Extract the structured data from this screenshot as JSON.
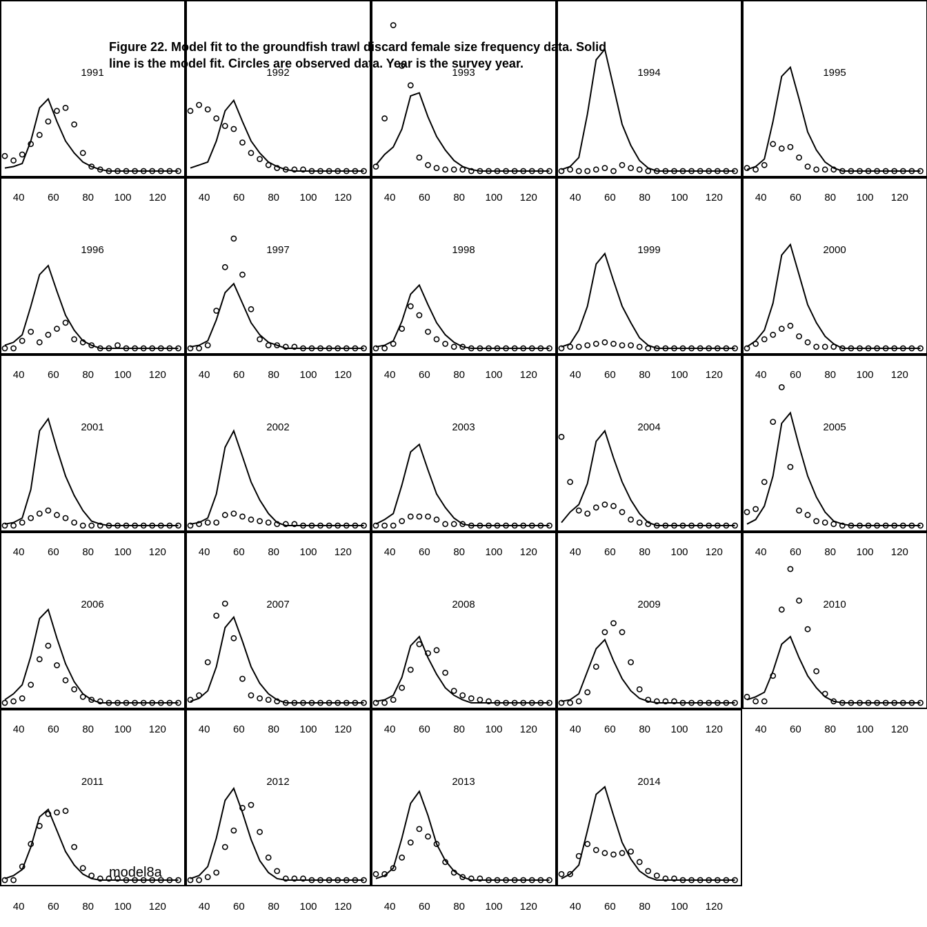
{
  "caption": {
    "line1": "Figure 22.  Model fit to the groundfish trawl discard female size frequency data.  Solid",
    "line2": "line is the model fit. Circles are observed data.  Year is the survey year."
  },
  "model_label": "model8a",
  "chart_data": {
    "type": "scatter",
    "layout": "5x5 panel grid",
    "x_ticks": [
      40,
      60,
      80,
      100,
      120
    ],
    "x_range": [
      30,
      135
    ],
    "x_bins": [
      32,
      37,
      42,
      47,
      52,
      57,
      62,
      67,
      72,
      77,
      82,
      87,
      92,
      97,
      102,
      107,
      112,
      117,
      122,
      127,
      132
    ],
    "y_range": [
      0,
      1
    ],
    "panels": [
      {
        "year": "1991",
        "fit": [
          0.02,
          0.03,
          0.05,
          0.2,
          0.42,
          0.48,
          0.33,
          0.2,
          0.12,
          0.06,
          0.03,
          0.01,
          0,
          0,
          0,
          0,
          0,
          0,
          0,
          0,
          0
        ],
        "obs": [
          0.1,
          0.07,
          0.11,
          0.18,
          0.24,
          0.33,
          0.4,
          0.42,
          0.31,
          0.12,
          0.03,
          0.01,
          0,
          0,
          0,
          0,
          0,
          0,
          0,
          0,
          0
        ]
      },
      {
        "year": "1992",
        "fit": [
          0.02,
          0.04,
          0.06,
          0.2,
          0.4,
          0.47,
          0.33,
          0.2,
          0.12,
          0.06,
          0.03,
          0.01,
          0,
          0,
          0,
          0,
          0,
          0,
          0,
          0,
          0
        ],
        "obs": [
          0.4,
          0.44,
          0.41,
          0.35,
          0.3,
          0.28,
          0.19,
          0.12,
          0.08,
          0.04,
          0.02,
          0.01,
          0.01,
          0.01,
          0,
          0,
          0,
          0,
          0,
          0,
          0
        ]
      },
      {
        "year": "1993",
        "fit": [
          0.04,
          0.11,
          0.16,
          0.28,
          0.5,
          0.52,
          0.36,
          0.23,
          0.14,
          0.07,
          0.03,
          0.01,
          0,
          0,
          0,
          0,
          0,
          0,
          0,
          0,
          0
        ],
        "obs": [
          0.03,
          0.35,
          0.97,
          0.7,
          0.57,
          0.09,
          0.04,
          0.02,
          0.01,
          0.01,
          0.01,
          0,
          0,
          0,
          0,
          0,
          0,
          0,
          0,
          0,
          0
        ]
      },
      {
        "year": "1994",
        "fit": [
          0.01,
          0.03,
          0.09,
          0.38,
          0.74,
          0.81,
          0.56,
          0.31,
          0.17,
          0.07,
          0.02,
          0,
          0,
          0,
          0,
          0,
          0,
          0,
          0,
          0,
          0
        ],
        "obs": [
          0,
          0.01,
          0,
          0,
          0.01,
          0.02,
          0,
          0.04,
          0.02,
          0.01,
          0,
          0,
          0,
          0,
          0,
          0,
          0,
          0,
          0,
          0,
          0
        ]
      },
      {
        "year": "1995",
        "fit": [
          0.01,
          0.03,
          0.08,
          0.33,
          0.63,
          0.69,
          0.48,
          0.26,
          0.14,
          0.06,
          0.02,
          0,
          0,
          0,
          0,
          0,
          0,
          0,
          0,
          0,
          0
        ],
        "obs": [
          0.02,
          0.01,
          0.04,
          0.18,
          0.15,
          0.16,
          0.09,
          0.03,
          0.01,
          0.01,
          0.01,
          0,
          0,
          0,
          0,
          0,
          0,
          0,
          0,
          0,
          0
        ]
      },
      {
        "year": "1996",
        "fit": [
          0.02,
          0.04,
          0.09,
          0.28,
          0.49,
          0.55,
          0.38,
          0.22,
          0.12,
          0.05,
          0.02,
          0,
          0,
          0,
          0,
          0,
          0,
          0,
          0,
          0,
          0
        ],
        "obs": [
          0,
          0,
          0.05,
          0.11,
          0.04,
          0.09,
          0.13,
          0.17,
          0.06,
          0.04,
          0.02,
          0,
          0,
          0.02,
          0,
          0,
          0,
          0,
          0,
          0,
          0
        ]
      },
      {
        "year": "1997",
        "fit": [
          0.01,
          0.02,
          0.05,
          0.19,
          0.37,
          0.43,
          0.3,
          0.17,
          0.09,
          0.04,
          0.02,
          0,
          0,
          0,
          0,
          0,
          0,
          0,
          0,
          0,
          0
        ],
        "obs": [
          0,
          0,
          0.02,
          0.25,
          0.54,
          0.73,
          0.49,
          0.26,
          0.06,
          0.02,
          0.02,
          0.01,
          0.01,
          0,
          0,
          0,
          0,
          0,
          0,
          0,
          0
        ]
      },
      {
        "year": "1998",
        "fit": [
          0.01,
          0.02,
          0.05,
          0.18,
          0.36,
          0.42,
          0.29,
          0.17,
          0.09,
          0.04,
          0.01,
          0,
          0,
          0,
          0,
          0,
          0,
          0,
          0,
          0,
          0
        ],
        "obs": [
          0,
          0,
          0.03,
          0.13,
          0.28,
          0.22,
          0.11,
          0.06,
          0.03,
          0.01,
          0.01,
          0,
          0,
          0,
          0,
          0,
          0,
          0,
          0,
          0,
          0
        ]
      },
      {
        "year": "1999",
        "fit": [
          0.01,
          0.03,
          0.12,
          0.28,
          0.56,
          0.63,
          0.45,
          0.28,
          0.17,
          0.07,
          0.02,
          0,
          0,
          0,
          0,
          0,
          0,
          0,
          0,
          0,
          0
        ],
        "obs": [
          0,
          0.01,
          0.01,
          0.02,
          0.03,
          0.04,
          0.03,
          0.02,
          0.02,
          0.01,
          0,
          0,
          0,
          0,
          0,
          0,
          0,
          0,
          0,
          0,
          0
        ]
      },
      {
        "year": "2000",
        "fit": [
          0.01,
          0.05,
          0.12,
          0.3,
          0.62,
          0.69,
          0.49,
          0.29,
          0.17,
          0.08,
          0.03,
          0,
          0,
          0,
          0,
          0,
          0,
          0,
          0,
          0,
          0
        ],
        "obs": [
          0,
          0.03,
          0.06,
          0.09,
          0.13,
          0.15,
          0.08,
          0.04,
          0.01,
          0.01,
          0.01,
          0,
          0,
          0,
          0,
          0,
          0,
          0,
          0,
          0,
          0
        ]
      },
      {
        "year": "2001",
        "fit": [
          0.01,
          0.02,
          0.05,
          0.24,
          0.63,
          0.71,
          0.51,
          0.33,
          0.2,
          0.1,
          0.03,
          0.01,
          0,
          0,
          0,
          0,
          0,
          0,
          0,
          0,
          0
        ],
        "obs": [
          0,
          0,
          0.02,
          0.05,
          0.08,
          0.1,
          0.07,
          0.05,
          0.02,
          0,
          0,
          0,
          0,
          0,
          0,
          0,
          0,
          0,
          0,
          0,
          0
        ]
      },
      {
        "year": "2002",
        "fit": [
          0.01,
          0.02,
          0.05,
          0.21,
          0.52,
          0.63,
          0.46,
          0.29,
          0.17,
          0.08,
          0.02,
          0,
          0,
          0,
          0,
          0,
          0,
          0,
          0,
          0,
          0
        ],
        "obs": [
          0,
          0.01,
          0.02,
          0.02,
          0.07,
          0.08,
          0.06,
          0.04,
          0.03,
          0.02,
          0.01,
          0.01,
          0.01,
          0,
          0,
          0,
          0,
          0,
          0,
          0,
          0
        ]
      },
      {
        "year": "2003",
        "fit": [
          0.01,
          0.04,
          0.08,
          0.27,
          0.49,
          0.54,
          0.37,
          0.21,
          0.12,
          0.05,
          0.01,
          0,
          0,
          0,
          0,
          0,
          0,
          0,
          0,
          0,
          0
        ],
        "obs": [
          0,
          0,
          0,
          0.03,
          0.06,
          0.06,
          0.06,
          0.04,
          0.01,
          0.01,
          0.01,
          0,
          0,
          0,
          0,
          0,
          0,
          0,
          0,
          0,
          0
        ]
      },
      {
        "year": "2004",
        "fit": [
          0.02,
          0.09,
          0.14,
          0.28,
          0.56,
          0.63,
          0.45,
          0.29,
          0.17,
          0.08,
          0.02,
          0,
          0,
          0,
          0,
          0,
          0,
          0,
          0,
          0,
          0
        ],
        "obs": [
          0.59,
          0.29,
          0.1,
          0.08,
          0.12,
          0.14,
          0.13,
          0.09,
          0.04,
          0.02,
          0.01,
          0,
          0,
          0,
          0,
          0,
          0,
          0,
          0,
          0,
          0
        ]
      },
      {
        "year": "2005",
        "fit": [
          0.01,
          0.04,
          0.13,
          0.33,
          0.68,
          0.75,
          0.53,
          0.33,
          0.19,
          0.09,
          0.03,
          0.01,
          0,
          0,
          0,
          0,
          0,
          0,
          0,
          0,
          0
        ],
        "obs": [
          0.09,
          0.11,
          0.29,
          0.69,
          0.92,
          0.39,
          0.1,
          0.07,
          0.03,
          0.02,
          0.01,
          0,
          0,
          0,
          0,
          0,
          0,
          0,
          0,
          0,
          0
        ]
      },
      {
        "year": "2006",
        "fit": [
          0.02,
          0.06,
          0.12,
          0.31,
          0.56,
          0.62,
          0.43,
          0.26,
          0.14,
          0.06,
          0.02,
          0,
          0,
          0,
          0,
          0,
          0,
          0,
          0,
          0,
          0
        ],
        "obs": [
          0,
          0.01,
          0.03,
          0.12,
          0.29,
          0.38,
          0.25,
          0.15,
          0.09,
          0.04,
          0.02,
          0.01,
          0,
          0,
          0,
          0,
          0,
          0,
          0,
          0,
          0
        ]
      },
      {
        "year": "2007",
        "fit": [
          0.01,
          0.03,
          0.08,
          0.24,
          0.5,
          0.57,
          0.41,
          0.24,
          0.13,
          0.06,
          0.02,
          0,
          0,
          0,
          0,
          0,
          0,
          0,
          0,
          0,
          0
        ],
        "obs": [
          0.02,
          0.05,
          0.27,
          0.58,
          0.66,
          0.43,
          0.16,
          0.05,
          0.03,
          0.02,
          0.01,
          0,
          0,
          0,
          0,
          0,
          0,
          0,
          0,
          0,
          0
        ]
      },
      {
        "year": "2008",
        "fit": [
          0.01,
          0.02,
          0.05,
          0.17,
          0.38,
          0.44,
          0.3,
          0.19,
          0.1,
          0.05,
          0.02,
          0,
          0,
          0,
          0,
          0,
          0,
          0,
          0,
          0,
          0
        ],
        "obs": [
          0,
          0,
          0.02,
          0.1,
          0.22,
          0.39,
          0.33,
          0.35,
          0.2,
          0.08,
          0.05,
          0.03,
          0.02,
          0.01,
          0,
          0,
          0,
          0,
          0,
          0,
          0
        ]
      },
      {
        "year": "2009",
        "fit": [
          0.01,
          0.02,
          0.06,
          0.21,
          0.36,
          0.42,
          0.28,
          0.16,
          0.08,
          0.03,
          0.01,
          0,
          0,
          0,
          0,
          0,
          0,
          0,
          0,
          0,
          0
        ],
        "obs": [
          0,
          0,
          0.01,
          0.07,
          0.24,
          0.47,
          0.53,
          0.47,
          0.27,
          0.09,
          0.02,
          0.01,
          0.01,
          0.01,
          0,
          0,
          0,
          0,
          0,
          0,
          0
        ]
      },
      {
        "year": "2010",
        "fit": [
          0.02,
          0.04,
          0.07,
          0.21,
          0.39,
          0.44,
          0.3,
          0.18,
          0.1,
          0.04,
          0.01,
          0,
          0,
          0,
          0,
          0,
          0,
          0,
          0,
          0,
          0
        ],
        "obs": [
          0.04,
          0.01,
          0.01,
          0.18,
          0.62,
          0.89,
          0.68,
          0.49,
          0.21,
          0.06,
          0.01,
          0,
          0,
          0,
          0,
          0,
          0,
          0,
          0,
          0,
          0
        ]
      },
      {
        "year": "2011",
        "fit": [
          0.01,
          0.03,
          0.07,
          0.22,
          0.42,
          0.47,
          0.33,
          0.19,
          0.1,
          0.04,
          0.01,
          0,
          0,
          0,
          0,
          0,
          0,
          0,
          0,
          0,
          0
        ],
        "obs": [
          0,
          0,
          0.09,
          0.24,
          0.36,
          0.44,
          0.45,
          0.46,
          0.22,
          0.08,
          0.03,
          0.01,
          0.01,
          0.01,
          0,
          0,
          0,
          0,
          0,
          0,
          0
        ]
      },
      {
        "year": "2012",
        "fit": [
          0.01,
          0.03,
          0.09,
          0.28,
          0.53,
          0.61,
          0.45,
          0.27,
          0.13,
          0.05,
          0.01,
          0,
          0,
          0,
          0,
          0,
          0,
          0,
          0,
          0,
          0
        ],
        "obs": [
          0,
          0,
          0.02,
          0.05,
          0.22,
          0.33,
          0.48,
          0.5,
          0.32,
          0.15,
          0.06,
          0.01,
          0.01,
          0.01,
          0,
          0,
          0,
          0,
          0,
          0,
          0
        ]
      },
      {
        "year": "2013",
        "fit": [
          0.01,
          0.03,
          0.08,
          0.28,
          0.51,
          0.59,
          0.43,
          0.24,
          0.13,
          0.06,
          0.02,
          0,
          0,
          0,
          0,
          0,
          0,
          0,
          0,
          0,
          0
        ],
        "obs": [
          0.04,
          0.04,
          0.08,
          0.15,
          0.25,
          0.34,
          0.29,
          0.24,
          0.12,
          0.05,
          0.02,
          0.01,
          0.01,
          0,
          0,
          0,
          0,
          0,
          0,
          0,
          0
        ]
      },
      {
        "year": "2014",
        "fit": [
          0.01,
          0.04,
          0.1,
          0.33,
          0.57,
          0.62,
          0.43,
          0.25,
          0.14,
          0.06,
          0.02,
          0,
          0,
          0,
          0,
          0,
          0,
          0,
          0,
          0,
          0
        ],
        "obs": [
          0.04,
          0.04,
          0.16,
          0.24,
          0.2,
          0.18,
          0.17,
          0.18,
          0.19,
          0.12,
          0.06,
          0.03,
          0.01,
          0.01,
          0,
          0,
          0,
          0,
          0,
          0,
          0
        ]
      }
    ]
  }
}
